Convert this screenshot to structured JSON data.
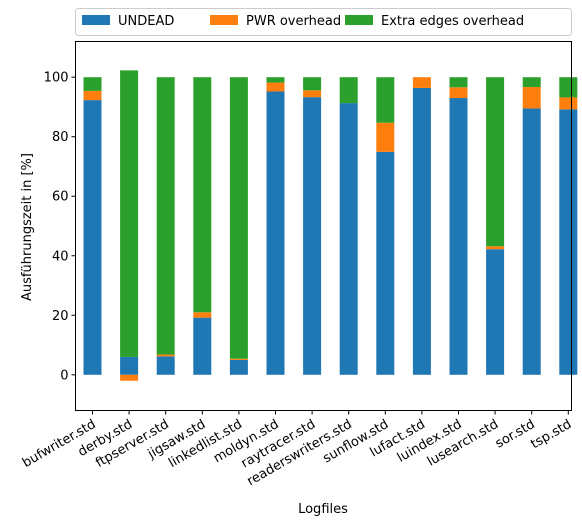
{
  "chart_data": {
    "type": "bar",
    "stacked": true,
    "title": "",
    "xlabel": "Logfiles",
    "ylabel": "Ausführungszeit in [%]",
    "ylim": [
      -12,
      112
    ],
    "yticks": [
      0,
      20,
      40,
      60,
      80,
      100
    ],
    "grid": false,
    "legend_position": "top",
    "categories": [
      "bufwriter.std",
      "derby.std",
      "ftpserver.std",
      "jigsaw.std",
      "linkedlist.std",
      "moldyn.std",
      "raytracer.std",
      "readerswriters.std",
      "sunflow.std",
      "lufact.std",
      "luindex.std",
      "lusearch.std",
      "sor.std",
      "tsp.std"
    ],
    "series": [
      {
        "name": "UNDEAD",
        "color": "#1f77b4",
        "values": [
          92.3,
          6.0,
          6.2,
          19.2,
          5.0,
          95.2,
          93.3,
          91.3,
          74.9,
          96.4,
          93.0,
          42.2,
          89.5,
          89.2
        ]
      },
      {
        "name": "PWR overhead",
        "color": "#ff7f0e",
        "values": [
          3.1,
          -2.0,
          0.6,
          1.8,
          0.4,
          3.0,
          2.3,
          0.0,
          9.8,
          3.6,
          3.6,
          1.0,
          7.2,
          4.0
        ]
      },
      {
        "name": "Extra edges overhead",
        "color": "#2ca02c",
        "values": [
          4.6,
          96.3,
          93.2,
          79.0,
          94.6,
          1.8,
          4.4,
          8.7,
          15.3,
          0.0,
          3.4,
          56.8,
          3.3,
          6.8
        ]
      }
    ]
  }
}
